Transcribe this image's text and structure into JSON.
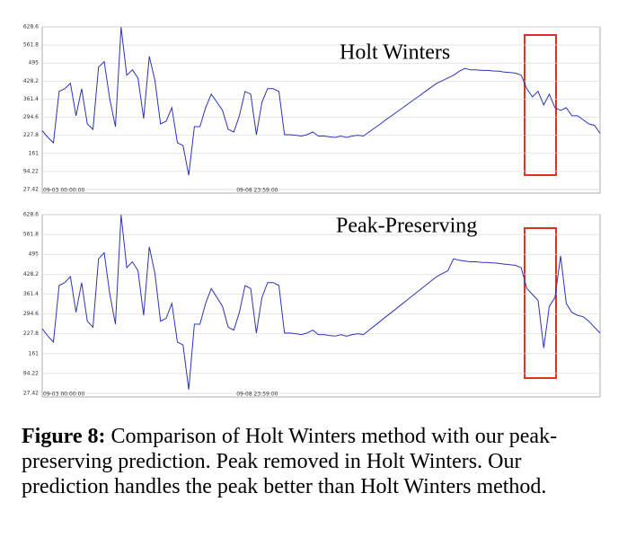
{
  "chart_data": [
    {
      "type": "line",
      "annotation": "Holt Winters",
      "color": "#2b35b5",
      "ylim": [
        27.42,
        628.6
      ],
      "yticks": [
        27.42,
        94.22,
        161,
        227.8,
        294.6,
        361.4,
        428.2,
        495,
        561.8,
        628.6
      ],
      "grid": true,
      "categories": [
        "09-03 00:00:00",
        null,
        null,
        null,
        null,
        null,
        null,
        null,
        null,
        null,
        null,
        null,
        null,
        null,
        null,
        null,
        null,
        null,
        null,
        null,
        null,
        null,
        null,
        null,
        null,
        null,
        null,
        null,
        null,
        null,
        null,
        null,
        null,
        null,
        null,
        null,
        null,
        null,
        "09-08 23:59:00",
        null,
        null,
        null,
        null,
        null,
        null,
        null,
        null,
        null,
        null,
        null,
        null,
        null,
        null,
        null,
        null,
        null,
        null,
        null,
        null,
        null,
        null,
        null,
        null,
        null,
        null,
        null,
        null,
        null,
        null,
        null,
        null,
        null,
        null,
        null,
        null,
        null,
        null,
        null,
        null,
        null,
        null,
        null,
        null,
        null,
        null,
        null,
        null,
        null,
        null,
        null,
        null,
        null,
        null,
        null,
        null,
        null,
        null,
        null,
        null,
        null
      ],
      "values": [
        245,
        220,
        200,
        390,
        400,
        420,
        300,
        400,
        270,
        250,
        480,
        500,
        360,
        260,
        628,
        450,
        470,
        440,
        290,
        520,
        430,
        270,
        280,
        330,
        200,
        190,
        80,
        260,
        260,
        330,
        380,
        350,
        320,
        250,
        240,
        300,
        390,
        380,
        230,
        350,
        400,
        400,
        390,
        230,
        230,
        228,
        225,
        230,
        240,
        225,
        225,
        222,
        220,
        225,
        220,
        225,
        228,
        225,
        240,
        255,
        270,
        285,
        300,
        315,
        330,
        345,
        360,
        375,
        390,
        405,
        420,
        430,
        440,
        450,
        465,
        475,
        470,
        470,
        468,
        468,
        466,
        465,
        462,
        460,
        458,
        450,
        400,
        370,
        390,
        340,
        380,
        330,
        320,
        330,
        300,
        300,
        285,
        270,
        265,
        235
      ]
    },
    {
      "type": "line",
      "annotation": "Peak-Preserving",
      "color": "#2b35b5",
      "ylim": [
        27.42,
        628.6
      ],
      "yticks": [
        27.42,
        94.22,
        161,
        227.8,
        294.6,
        361.4,
        428.2,
        495,
        561.8,
        628.6
      ],
      "grid": true,
      "categories": [
        "09-03 00:00:00",
        null,
        null,
        null,
        null,
        null,
        null,
        null,
        null,
        null,
        null,
        null,
        null,
        null,
        null,
        null,
        null,
        null,
        null,
        null,
        null,
        null,
        null,
        null,
        null,
        null,
        null,
        null,
        null,
        null,
        null,
        null,
        null,
        null,
        null,
        null,
        null,
        null,
        "09-08 23:59:00",
        null,
        null,
        null,
        null,
        null,
        null,
        null,
        null,
        null,
        null,
        null,
        null,
        null,
        null,
        null,
        null,
        null,
        null,
        null,
        null,
        null,
        null,
        null,
        null,
        null,
        null,
        null,
        null,
        null,
        null,
        null,
        null,
        null,
        null,
        null,
        null,
        null,
        null,
        null,
        null,
        null,
        null,
        null,
        null,
        null,
        null,
        null,
        null,
        null,
        null,
        null,
        null,
        null,
        null,
        null,
        null,
        null,
        null,
        null,
        null,
        null
      ],
      "values": [
        245,
        220,
        200,
        390,
        400,
        420,
        300,
        400,
        270,
        250,
        480,
        500,
        360,
        260,
        628,
        450,
        470,
        440,
        290,
        520,
        430,
        270,
        280,
        330,
        200,
        190,
        40,
        260,
        260,
        330,
        380,
        350,
        320,
        250,
        240,
        300,
        390,
        380,
        230,
        350,
        400,
        400,
        390,
        230,
        230,
        228,
        225,
        230,
        240,
        225,
        225,
        222,
        220,
        225,
        220,
        225,
        228,
        225,
        240,
        255,
        270,
        285,
        300,
        315,
        330,
        345,
        360,
        375,
        390,
        405,
        420,
        430,
        440,
        480,
        475,
        472,
        470,
        470,
        468,
        468,
        466,
        465,
        462,
        460,
        458,
        450,
        380,
        360,
        340,
        180,
        320,
        350,
        490,
        330,
        300,
        290,
        285,
        270,
        250,
        230
      ]
    }
  ],
  "caption": {
    "label": "Figure 8:",
    "text": "Comparison of Holt Winters method with our peak-preserving prediction. Peak removed in Holt Winters. Our prediction handles the peak better than Holt Winters method."
  }
}
